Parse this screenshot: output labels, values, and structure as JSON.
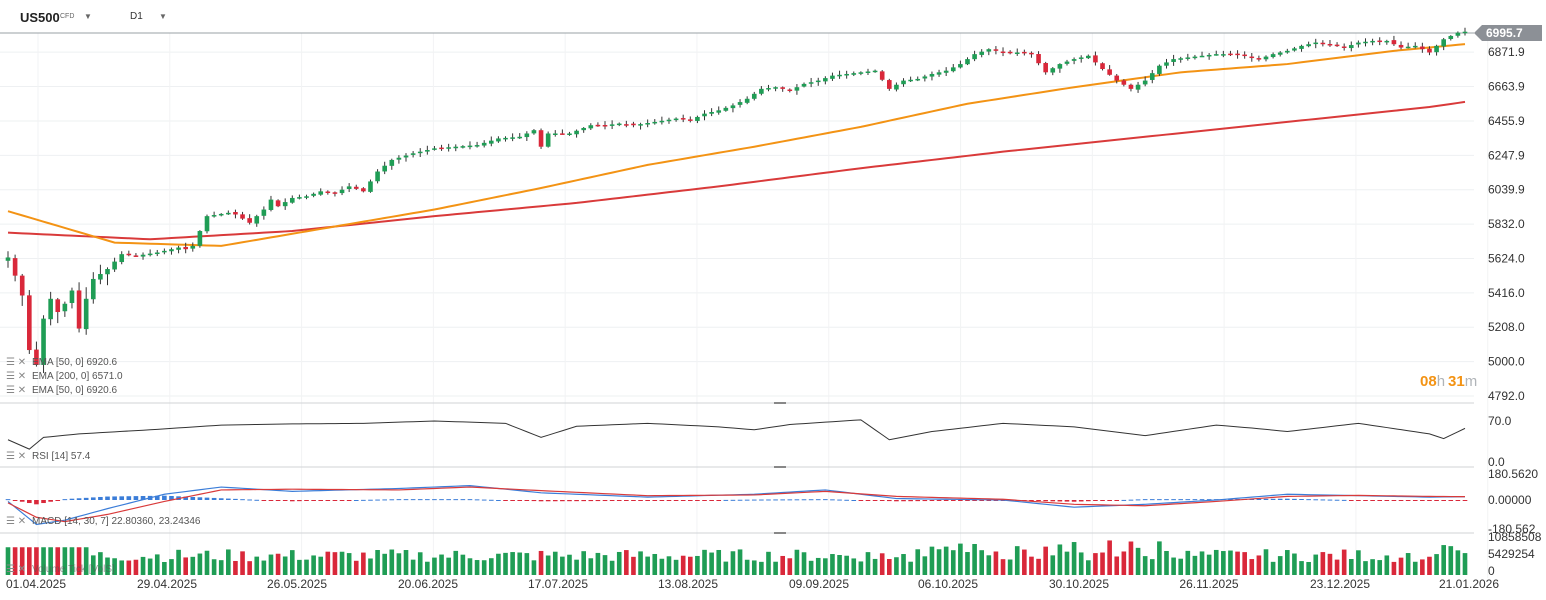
{
  "header": {
    "symbol": "US500",
    "instrument_type": "CFD",
    "timeframe": "D1"
  },
  "countdown": {
    "hours": "08",
    "h": "h",
    "minutes": "31",
    "m": "m"
  },
  "colors": {
    "up": "#1f9d55",
    "down": "#d9283a",
    "ema50": "#f39314",
    "ema200": "#d93a3a",
    "macd": "#3b7dd8",
    "signal": "#d93a3a",
    "rsi": "#333333",
    "price_tag": "#8c9096"
  },
  "legend": {
    "ema_top": "EMA [50, 0] 6920.6",
    "ema200": "EMA [200, 0] 6571.0",
    "ema50": "EMA [50, 0] 6920.6",
    "rsi": "RSI [14] 57.4",
    "macd": "MACD [14, 30, 7] 22.80360, 23.24346",
    "volume": "Volume Tick [VolS]"
  },
  "chart_data": [
    {
      "type": "candlestick",
      "title": "US500 CFD D1",
      "last_price": "6995.7",
      "y_ticks": [
        "6871.9",
        "6663.9",
        "6455.9",
        "6247.9",
        "6039.9",
        "5832.0",
        "5624.0",
        "5416.0",
        "5208.0",
        "5000.0",
        "4792.0"
      ],
      "x_ticks": [
        "01.04.2025",
        "29.04.2025",
        "26.05.2025",
        "20.06.2025",
        "17.07.2025",
        "13.08.2025",
        "09.09.2025",
        "06.10.2025",
        "30.10.2025",
        "26.11.2025",
        "23.12.2025",
        "21.01.2026"
      ],
      "ylim": [
        4792,
        7000
      ],
      "close_anchors": [
        [
          0,
          5630
        ],
        [
          1,
          5520
        ],
        [
          2,
          5400
        ],
        [
          3,
          5070
        ],
        [
          4,
          4980
        ],
        [
          5,
          5260
        ],
        [
          6,
          5380
        ],
        [
          7,
          5300
        ],
        [
          8,
          5350
        ],
        [
          9,
          5430
        ],
        [
          10,
          5200
        ],
        [
          11,
          5380
        ],
        [
          12,
          5500
        ],
        [
          14,
          5560
        ],
        [
          16,
          5650
        ],
        [
          18,
          5640
        ],
        [
          21,
          5660
        ],
        [
          23,
          5680
        ],
        [
          24,
          5690
        ],
        [
          25,
          5680
        ],
        [
          26,
          5700
        ],
        [
          28,
          5880
        ],
        [
          31,
          5900
        ],
        [
          32,
          5890
        ],
        [
          34,
          5840
        ],
        [
          36,
          5920
        ],
        [
          37,
          5980
        ],
        [
          38,
          5940
        ],
        [
          40,
          5990
        ],
        [
          42,
          6000
        ],
        [
          44,
          6030
        ],
        [
          46,
          6020
        ],
        [
          48,
          6060
        ],
        [
          50,
          6030
        ],
        [
          52,
          6150
        ],
        [
          54,
          6220
        ],
        [
          57,
          6260
        ],
        [
          60,
          6290
        ],
        [
          63,
          6300
        ],
        [
          66,
          6310
        ],
        [
          69,
          6350
        ],
        [
          72,
          6360
        ],
        [
          74,
          6400
        ],
        [
          75,
          6300
        ],
        [
          76,
          6380
        ],
        [
          79,
          6380
        ],
        [
          82,
          6430
        ],
        [
          84,
          6430
        ],
        [
          86,
          6440
        ],
        [
          88,
          6430
        ],
        [
          91,
          6450
        ],
        [
          94,
          6470
        ],
        [
          96,
          6460
        ],
        [
          98,
          6500
        ],
        [
          100,
          6520
        ],
        [
          102,
          6550
        ],
        [
          104,
          6590
        ],
        [
          106,
          6650
        ],
        [
          108,
          6660
        ],
        [
          110,
          6640
        ],
        [
          112,
          6680
        ],
        [
          114,
          6700
        ],
        [
          116,
          6730
        ],
        [
          118,
          6740
        ],
        [
          120,
          6750
        ],
        [
          122,
          6760
        ],
        [
          124,
          6650
        ],
        [
          126,
          6700
        ],
        [
          128,
          6710
        ],
        [
          130,
          6740
        ],
        [
          132,
          6760
        ],
        [
          134,
          6800
        ],
        [
          136,
          6860
        ],
        [
          138,
          6890
        ],
        [
          140,
          6870
        ],
        [
          142,
          6870
        ],
        [
          144,
          6860
        ],
        [
          146,
          6750
        ],
        [
          148,
          6800
        ],
        [
          150,
          6830
        ],
        [
          152,
          6850
        ],
        [
          154,
          6770
        ],
        [
          156,
          6700
        ],
        [
          158,
          6650
        ],
        [
          160,
          6700
        ],
        [
          162,
          6790
        ],
        [
          164,
          6830
        ],
        [
          166,
          6840
        ],
        [
          168,
          6850
        ],
        [
          170,
          6860
        ],
        [
          172,
          6860
        ],
        [
          174,
          6850
        ],
        [
          176,
          6830
        ],
        [
          178,
          6860
        ],
        [
          180,
          6880
        ],
        [
          182,
          6910
        ],
        [
          184,
          6930
        ],
        [
          186,
          6920
        ],
        [
          188,
          6900
        ],
        [
          190,
          6930
        ],
        [
          192,
          6940
        ],
        [
          194,
          6940
        ],
        [
          196,
          6900
        ],
        [
          198,
          6910
        ],
        [
          200,
          6870
        ],
        [
          202,
          6950
        ],
        [
          204,
          6990
        ],
        [
          205,
          6995.7
        ]
      ],
      "candles_count": 206,
      "ema50_anchors": [
        [
          0,
          5910
        ],
        [
          15,
          5720
        ],
        [
          30,
          5700
        ],
        [
          45,
          5810
        ],
        [
          60,
          5920
        ],
        [
          75,
          6050
        ],
        [
          90,
          6190
        ],
        [
          105,
          6300
        ],
        [
          120,
          6420
        ],
        [
          135,
          6560
        ],
        [
          150,
          6660
        ],
        [
          165,
          6750
        ],
        [
          180,
          6800
        ],
        [
          195,
          6880
        ],
        [
          205,
          6920.6
        ]
      ],
      "ema200_anchors": [
        [
          0,
          5780
        ],
        [
          20,
          5740
        ],
        [
          40,
          5790
        ],
        [
          60,
          5880
        ],
        [
          80,
          5960
        ],
        [
          100,
          6060
        ],
        [
          120,
          6170
        ],
        [
          140,
          6270
        ],
        [
          160,
          6360
        ],
        [
          180,
          6450
        ],
        [
          200,
          6540
        ],
        [
          205,
          6571.0
        ]
      ]
    },
    {
      "type": "line",
      "title": "RSI [14]",
      "y_ticks": [
        "70.0",
        "0.0"
      ],
      "ylim": [
        0,
        100
      ],
      "anchors": [
        [
          0,
          38
        ],
        [
          3,
          22
        ],
        [
          5,
          42
        ],
        [
          10,
          48
        ],
        [
          20,
          55
        ],
        [
          30,
          63
        ],
        [
          40,
          65
        ],
        [
          50,
          66
        ],
        [
          60,
          70
        ],
        [
          70,
          66
        ],
        [
          75,
          42
        ],
        [
          80,
          61
        ],
        [
          90,
          66
        ],
        [
          100,
          60
        ],
        [
          105,
          55
        ],
        [
          110,
          64
        ],
        [
          120,
          72
        ],
        [
          124,
          38
        ],
        [
          130,
          52
        ],
        [
          140,
          66
        ],
        [
          150,
          60
        ],
        [
          160,
          45
        ],
        [
          170,
          63
        ],
        [
          175,
          58
        ],
        [
          180,
          52
        ],
        [
          190,
          66
        ],
        [
          200,
          48
        ],
        [
          202,
          40
        ],
        [
          205,
          57.4
        ]
      ]
    },
    {
      "type": "bar",
      "title": "MACD [14, 30, 7]",
      "y_ticks": [
        "180.5620",
        "0.00000",
        "-180.562"
      ],
      "ylim": [
        -180.562,
        180.562
      ],
      "macd_anchors": [
        [
          0,
          -10
        ],
        [
          4,
          -170
        ],
        [
          8,
          -140
        ],
        [
          14,
          -60
        ],
        [
          22,
          40
        ],
        [
          30,
          90
        ],
        [
          40,
          60
        ],
        [
          55,
          80
        ],
        [
          65,
          100
        ],
        [
          75,
          50
        ],
        [
          90,
          20
        ],
        [
          105,
          40
        ],
        [
          115,
          70
        ],
        [
          125,
          10
        ],
        [
          140,
          0
        ],
        [
          150,
          -50
        ],
        [
          160,
          -30
        ],
        [
          170,
          0
        ],
        [
          180,
          40
        ],
        [
          190,
          30
        ],
        [
          200,
          20
        ],
        [
          205,
          22.8
        ]
      ],
      "signal_anchors": [
        [
          0,
          -20
        ],
        [
          4,
          -120
        ],
        [
          8,
          -150
        ],
        [
          14,
          -100
        ],
        [
          22,
          -10
        ],
        [
          30,
          70
        ],
        [
          40,
          75
        ],
        [
          55,
          70
        ],
        [
          65,
          90
        ],
        [
          75,
          65
        ],
        [
          90,
          30
        ],
        [
          105,
          35
        ],
        [
          115,
          60
        ],
        [
          125,
          25
        ],
        [
          140,
          5
        ],
        [
          150,
          -30
        ],
        [
          160,
          -40
        ],
        [
          170,
          -10
        ],
        [
          180,
          25
        ],
        [
          190,
          32
        ],
        [
          200,
          25
        ],
        [
          205,
          23.2
        ]
      ]
    },
    {
      "type": "bar",
      "title": "Volume Tick [VolS]",
      "y_ticks": [
        "10858508",
        "5429254",
        "0"
      ],
      "ylim": [
        0,
        10858508
      ]
    }
  ]
}
